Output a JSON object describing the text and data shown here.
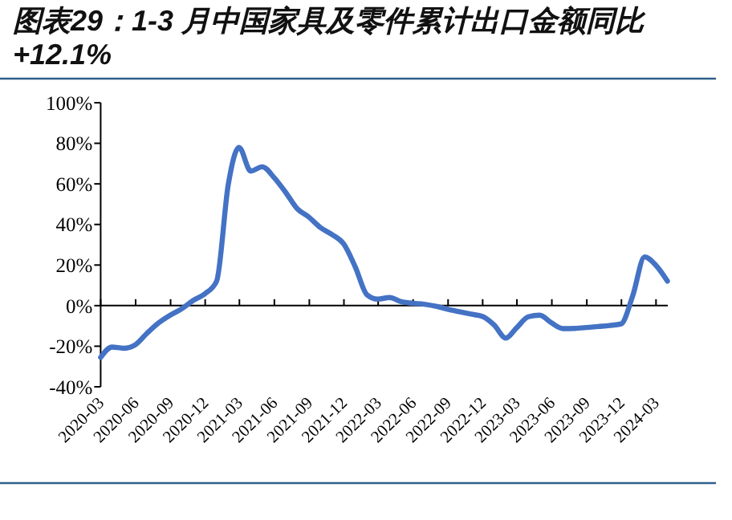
{
  "chart_data": {
    "type": "line",
    "title": "图表29：1-3 月中国家具及零件累计出口金额同比+12.1%",
    "x": [
      "2020-03-01",
      "2020-03-31",
      "2020-04-30",
      "2020-05-31",
      "2020-06-30",
      "2020-07-31",
      "2020-08-31",
      "2020-09-30",
      "2020-10-31",
      "2020-11-30",
      "2020-12-31",
      "2021-01-31",
      "2021-02-28",
      "2021-03-31",
      "2021-04-30",
      "2021-05-31",
      "2021-06-30",
      "2021-07-31",
      "2021-08-31",
      "2021-09-30",
      "2021-10-31",
      "2021-11-30",
      "2021-12-31",
      "2022-01-31",
      "2022-02-28",
      "2022-03-31",
      "2022-04-30",
      "2022-05-31",
      "2022-06-30",
      "2022-07-31",
      "2022-08-31",
      "2022-09-30",
      "2022-10-31",
      "2022-11-30",
      "2022-12-31",
      "2023-01-31",
      "2023-02-28",
      "2023-03-31",
      "2023-04-30",
      "2023-05-31",
      "2023-06-30",
      "2023-07-31",
      "2023-08-31",
      "2023-09-30",
      "2023-10-31",
      "2023-11-30",
      "2023-12-31",
      "2024-01-31",
      "2024-02-29",
      "2024-03-31"
    ],
    "series": [
      {
        "color": "#4472c4",
        "values": [
          -25.5,
          -20.4,
          -21,
          -19.3,
          -13.8,
          -8.6,
          -4.7,
          -1.6,
          2.6,
          5.8,
          12,
          60,
          78,
          66.3,
          68.4,
          63.2,
          56,
          47.8,
          43.6,
          38.5,
          35,
          30.5,
          19,
          5.3,
          3.2,
          4,
          2,
          1.2,
          0.7,
          -0.3,
          -1.8,
          -3,
          -4.2,
          -5.3,
          -9.5,
          -16,
          -11,
          -5.5,
          -4.7,
          -8.5,
          -11.3,
          -11.2,
          -10.8,
          -10.3,
          -9.8,
          -9,
          5,
          24,
          20,
          12.1
        ]
      }
    ],
    "xlim": [
      "2020-03-01",
      "2024-04-01"
    ],
    "xticks": [
      {
        "value": "2020-03",
        "label": "2020-03"
      },
      {
        "value": "2020-06",
        "label": "2020-06"
      },
      {
        "value": "2020-09",
        "label": "2020-09"
      },
      {
        "value": "2020-12",
        "label": "2020-12"
      },
      {
        "value": "2021-03",
        "label": "2021-03"
      },
      {
        "value": "2021-06",
        "label": "2021-06"
      },
      {
        "value": "2021-09",
        "label": "2021-09"
      },
      {
        "value": "2021-12",
        "label": "2021-12"
      },
      {
        "value": "2022-03",
        "label": "2022-03"
      },
      {
        "value": "2022-06",
        "label": "2022-06"
      },
      {
        "value": "2022-09",
        "label": "2022-09"
      },
      {
        "value": "2022-12",
        "label": "2022-12"
      },
      {
        "value": "2023-03",
        "label": "2023-03"
      },
      {
        "value": "2023-06",
        "label": "2023-06"
      },
      {
        "value": "2023-09",
        "label": "2023-09"
      },
      {
        "value": "2023-12",
        "label": "2023-12"
      },
      {
        "value": "2024-03",
        "label": "2024-03"
      }
    ],
    "ylim": [
      -40,
      100
    ],
    "yticks": [
      {
        "value": -40,
        "label": "-40%"
      },
      {
        "value": -20,
        "label": "-20%"
      },
      {
        "value": 0,
        "label": "0%"
      },
      {
        "value": 20,
        "label": "20%"
      },
      {
        "value": 40,
        "label": "40%"
      },
      {
        "value": 60,
        "label": "60%"
      },
      {
        "value": 80,
        "label": "80%"
      },
      {
        "value": 100,
        "label": "100%"
      }
    ],
    "marker": "none",
    "line_style": "solid"
  }
}
